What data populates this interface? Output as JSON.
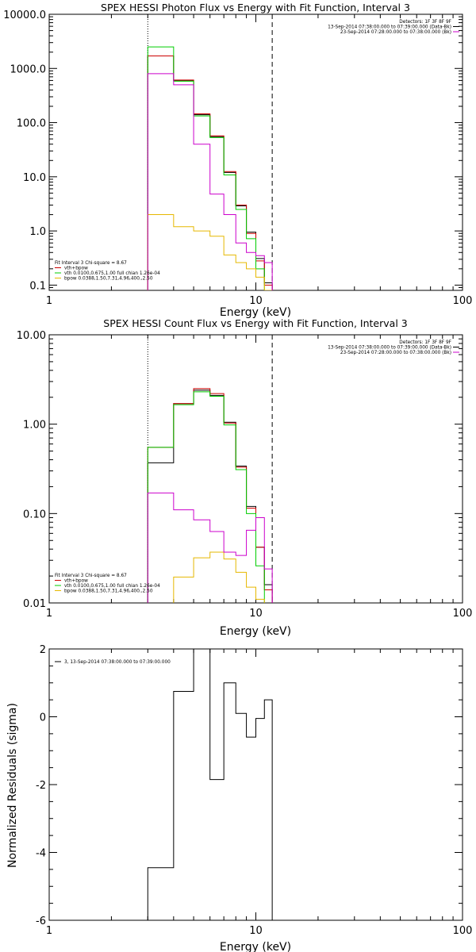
{
  "chart_data": [
    {
      "type": "line",
      "title": "SPEX HESSI Photon Flux vs Energy with Fit Function, Interval 3",
      "xlabel": "Energy (keV)",
      "ylabel": "",
      "xscale": "log",
      "yscale": "log",
      "xlim": [
        1,
        100
      ],
      "ylim": [
        0.08,
        10000
      ],
      "xticks": [
        "1",
        "10",
        "100"
      ],
      "yticks": [
        {
          "v": 10000,
          "label": "10000.0"
        },
        {
          "v": 1000,
          "label": "1000.0"
        },
        {
          "v": 100,
          "label": "100.0"
        },
        {
          "v": 10,
          "label": "10.0"
        },
        {
          "v": 1,
          "label": "1.0"
        },
        {
          "v": 0.1,
          "label": "0.1"
        }
      ],
      "vlines": [
        {
          "x": 3.0,
          "style": "dotted"
        },
        {
          "x": 12.0,
          "style": "dashed"
        }
      ],
      "bin_edges": [
        3.0,
        4.0,
        5.0,
        6.0,
        7.0,
        8.0,
        9.0,
        10.0,
        11.0,
        12.0
      ],
      "series": [
        {
          "key": "data",
          "color": "#000000",
          "values": [
            1700,
            600,
            140,
            55,
            12,
            2.9,
            0.95,
            0.31,
            0.11
          ]
        },
        {
          "key": "fit_total",
          "color": "#cc0000",
          "values": [
            1700,
            610,
            145,
            57,
            12.5,
            3.0,
            0.9,
            0.28,
            0.1
          ]
        },
        {
          "key": "vth",
          "color": "#00cc00",
          "values": [
            2500,
            580,
            133,
            53,
            10.8,
            2.5,
            0.72,
            0.2,
            0.06
          ]
        },
        {
          "key": "bpow",
          "color": "#e6b800",
          "values": [
            2.0,
            1.2,
            1.0,
            0.8,
            0.36,
            0.26,
            0.2,
            0.14,
            0.08
          ]
        },
        {
          "key": "bkg",
          "color": "#cc00cc",
          "values": [
            800,
            500,
            40,
            4.8,
            2.0,
            0.6,
            0.4,
            0.35,
            0.26
          ]
        }
      ],
      "legend_right": {
        "header": "Detectors: 1F 3F 8F 9F",
        "items": [
          {
            "text": "13-Sep-2014 07:38:00.000 to 07:39:00.000 (Data-Bk)",
            "color": "#000000"
          },
          {
            "text": "23-Sep-2014 07:28:00.000 to 07:38:00.000 (Bk)",
            "color": "#cc00cc"
          }
        ]
      },
      "legend_left": {
        "header": "Fit Interval 3   Chi-square = 8.67",
        "items": [
          {
            "text": "vth+bpow",
            "color": "#cc0000"
          },
          {
            "text": "vth 0.0100,0.675,1.00  full chian 1.26e-04",
            "color": "#00cc00"
          },
          {
            "text": "bpow 0.0388,1.50,7.31,4.96,400.,2.50",
            "color": "#e6b800"
          }
        ]
      }
    },
    {
      "type": "line",
      "title": "SPEX HESSI Count Flux vs Energy with Fit Function, Interval 3",
      "xlabel": "Energy (keV)",
      "ylabel": "",
      "xscale": "log",
      "yscale": "log",
      "xlim": [
        1,
        100
      ],
      "ylim": [
        0.01,
        10
      ],
      "xticks": [
        "1",
        "10",
        "100"
      ],
      "yticks": [
        {
          "v": 10,
          "label": "10.00"
        },
        {
          "v": 1,
          "label": "1.00"
        },
        {
          "v": 0.1,
          "label": "0.10"
        },
        {
          "v": 0.01,
          "label": "0.01"
        }
      ],
      "vlines": [
        {
          "x": 3.0,
          "style": "dotted"
        },
        {
          "x": 12.0,
          "style": "dashed"
        }
      ],
      "bin_edges": [
        3.0,
        4.0,
        5.0,
        6.0,
        7.0,
        8.0,
        9.0,
        10.0,
        11.0,
        12.0
      ],
      "series": [
        {
          "key": "data",
          "color": "#000000",
          "values": [
            0.37,
            1.7,
            2.4,
            2.1,
            1.05,
            0.34,
            0.12,
            0.042,
            0.016
          ]
        },
        {
          "key": "fit_total",
          "color": "#cc0000",
          "values": [
            0.55,
            1.7,
            2.5,
            2.2,
            1.03,
            0.33,
            0.115,
            0.042,
            0.014
          ]
        },
        {
          "key": "vth",
          "color": "#00cc00",
          "values": [
            0.55,
            1.65,
            2.3,
            2.05,
            0.98,
            0.31,
            0.1,
            0.026,
            0.008
          ]
        },
        {
          "key": "bpow",
          "color": "#e6b800",
          "values": [
            0.007,
            0.0195,
            0.032,
            0.037,
            0.031,
            0.022,
            0.015,
            0.011,
            0.009
          ]
        },
        {
          "key": "bkg",
          "color": "#cc00cc",
          "values": [
            0.17,
            0.11,
            0.085,
            0.063,
            0.037,
            0.034,
            0.065,
            0.09,
            0.024
          ]
        }
      ],
      "legend_right": {
        "header": "Detectors: 1F 3F 8F 9F",
        "items": [
          {
            "text": "13-Sep-2014 07:38:00.000 to 07:39:00.000 (Data-Bk)",
            "color": "#000000"
          },
          {
            "text": "23-Sep-2014 07:28:00.000 to 07:38:00.000 (Bk)",
            "color": "#cc00cc"
          }
        ]
      },
      "legend_left": {
        "header": "Fit Interval 3   Chi-square = 8.67",
        "items": [
          {
            "text": "vth+bpow",
            "color": "#cc0000"
          },
          {
            "text": "vth 0.0100,0.675,1.00  full chian 1.26e-04",
            "color": "#00cc00"
          },
          {
            "text": "bpow 0.0388,1.50,7.31,4.96,400.,2.50",
            "color": "#e6b800"
          }
        ]
      }
    },
    {
      "type": "line",
      "title": "",
      "xlabel": "Energy (keV)",
      "ylabel": "Normalized Residuals (sigma)",
      "xscale": "log",
      "yscale": "linear",
      "xlim": [
        1,
        100
      ],
      "ylim": [
        -6,
        2
      ],
      "xticks": [
        "1",
        "10",
        "100"
      ],
      "yticks": [
        {
          "v": 2,
          "label": "2"
        },
        {
          "v": 0,
          "label": "0"
        },
        {
          "v": -2,
          "label": "-2"
        },
        {
          "v": -4,
          "label": "-4"
        },
        {
          "v": -6,
          "label": "-6"
        }
      ],
      "bin_edges": [
        3.0,
        4.0,
        5.0,
        6.0,
        7.0,
        8.0,
        9.0,
        10.0,
        11.0,
        12.0
      ],
      "series": [
        {
          "key": "residuals",
          "color": "#000000",
          "values": [
            -4.45,
            0.75,
            2.0,
            -1.85,
            1.0,
            0.1,
            -0.6,
            -0.05,
            0.5
          ]
        }
      ],
      "legend_left": {
        "header": "",
        "items": [
          {
            "text": "3, 13-Sep-2014 07:38:00.000 to 07:39:00.000",
            "color": "#000000"
          }
        ]
      }
    }
  ]
}
